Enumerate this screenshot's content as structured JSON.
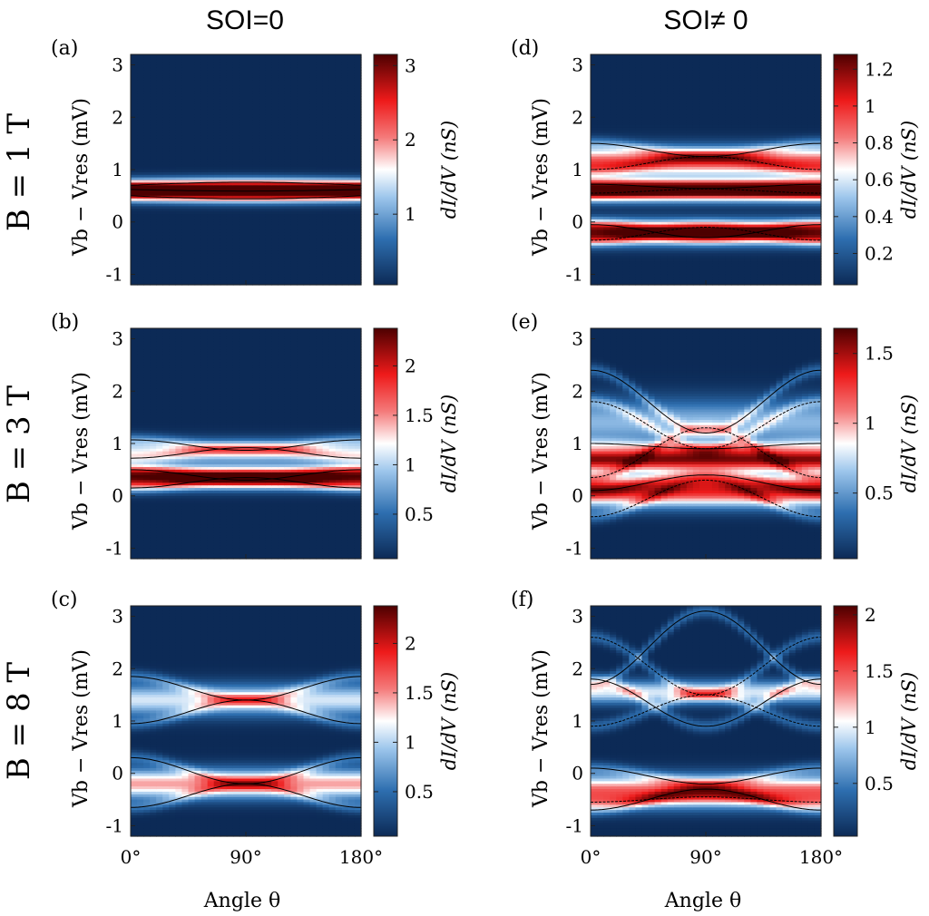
{
  "figure": {
    "col_titles": [
      "SOI=0",
      "SOI≠ 0"
    ],
    "row_labels": [
      "B = 1 T",
      "B = 3 T",
      "B = 8 T"
    ],
    "colorbar_label": "dI/dV (nS)",
    "y_axis_label": "Vb − Vres (mV)",
    "x_axis_label": "Angle θ"
  },
  "chart_data": [
    {
      "type": "heatmap",
      "panel": "(a)",
      "B_T": 1,
      "soi": false,
      "xlabel": "Angle θ",
      "ylabel": "Vb − Vres (mV)",
      "xlim": [
        0,
        180
      ],
      "ylim": [
        -1.2,
        3.2
      ],
      "x_ticks": [
        "0°",
        "90°",
        "180°"
      ],
      "y_ticks": [
        "-1",
        "0",
        "1",
        "2",
        "3"
      ],
      "colorbar": {
        "label": "dI/dV (nS)",
        "range": [
          0.05,
          3.15
        ],
        "ticks": [
          "1",
          "2",
          "3"
        ]
      },
      "bands": [
        {
          "center": 0.6,
          "width": 0.18,
          "amp": 1.0
        }
      ],
      "lines": [
        {
          "base": 0.7,
          "amp": 0.06,
          "shape": "up"
        },
        {
          "base": 0.5,
          "amp": 0.06,
          "shape": "down"
        },
        {
          "base": 0.62,
          "amp": 0.03,
          "shape": "down"
        }
      ]
    },
    {
      "type": "heatmap",
      "panel": "(b)",
      "B_T": 3,
      "soi": false,
      "xlabel": "Angle θ",
      "ylabel": "Vb − Vres (mV)",
      "xlim": [
        0,
        180
      ],
      "ylim": [
        -1.2,
        3.2
      ],
      "x_ticks": [
        "0°",
        "90°",
        "180°"
      ],
      "y_ticks": [
        "-1",
        "0",
        "1",
        "2",
        "3"
      ],
      "colorbar": {
        "label": "dI/dV (nS)",
        "range": [
          0.05,
          2.38
        ],
        "ticks": [
          "0.5",
          "1",
          "1.5",
          "2"
        ]
      },
      "bands": [
        {
          "center": 0.35,
          "width": 0.2,
          "amp": 0.95
        },
        {
          "center": 0.85,
          "width": 0.22,
          "amp": 0.42
        }
      ],
      "lines": [
        {
          "base": 1.07,
          "amp": -0.2,
          "shape": "cos"
        },
        {
          "base": 0.72,
          "amp": 0.2,
          "shape": "cos"
        },
        {
          "base": 0.5,
          "amp": -0.2,
          "shape": "cos"
        },
        {
          "base": 0.15,
          "amp": 0.2,
          "shape": "cos"
        }
      ]
    },
    {
      "type": "heatmap",
      "panel": "(c)",
      "B_T": 8,
      "soi": false,
      "xlabel": "Angle θ",
      "ylabel": "Vb − Vres (mV)",
      "xlim": [
        0,
        180
      ],
      "ylim": [
        -1.2,
        3.2
      ],
      "x_ticks": [
        "0°",
        "90°",
        "180°"
      ],
      "y_ticks": [
        "-1",
        "0",
        "1",
        "2",
        "3"
      ],
      "colorbar": {
        "label": "dI/dV (nS)",
        "range": [
          0.05,
          2.38
        ],
        "ticks": [
          "0.5",
          "1",
          "1.5",
          "2"
        ]
      },
      "bands": [
        {
          "center": 1.4,
          "width": 0.3,
          "amp": 0.45
        },
        {
          "center": -0.2,
          "width": 0.28,
          "amp": 0.6
        }
      ],
      "lines": [
        {
          "base": 1.85,
          "amp": -0.45,
          "shape": "cos"
        },
        {
          "base": 0.95,
          "amp": 0.45,
          "shape": "cos"
        },
        {
          "base": 0.3,
          "amp": -0.5,
          "shape": "cos"
        },
        {
          "base": -0.65,
          "amp": 0.45,
          "shape": "cos"
        }
      ]
    },
    {
      "type": "heatmap",
      "panel": "(d)",
      "B_T": 1,
      "soi": true,
      "xlabel": "Angle θ",
      "ylabel": "Vb − Vres (mV)",
      "xlim": [
        0,
        180
      ],
      "ylim": [
        -1.2,
        3.2
      ],
      "x_ticks": [
        "0°",
        "90°",
        "180°"
      ],
      "y_ticks": [
        "-1",
        "0",
        "1",
        "2",
        "3"
      ],
      "colorbar": {
        "label": "dI/dV (nS)",
        "range": [
          0.03,
          1.28
        ],
        "ticks": [
          "0.2",
          "0.4",
          "0.6",
          "0.8",
          "1",
          "1.2"
        ]
      },
      "bands": [
        {
          "center": 1.15,
          "width": 0.28,
          "amp": 0.7
        },
        {
          "center": 0.6,
          "width": 0.2,
          "amp": 0.95
        },
        {
          "center": -0.2,
          "width": 0.22,
          "amp": 0.9
        }
      ],
      "lines": [
        {
          "base": 1.5,
          "amp": -0.25,
          "shape": "cos"
        },
        {
          "base": 1.0,
          "amp": 0.25,
          "shape": "cos"
        },
        {
          "base": 0.72,
          "amp": -0.08,
          "shape": "cos"
        },
        {
          "base": 0.55,
          "amp": 0.08,
          "shape": "cos"
        },
        {
          "base": -0.05,
          "amp": -0.25,
          "shape": "cos"
        },
        {
          "base": -0.35,
          "amp": 0.25,
          "shape": "cos"
        }
      ]
    },
    {
      "type": "heatmap",
      "panel": "(e)",
      "B_T": 3,
      "soi": true,
      "xlabel": "Angle θ",
      "ylabel": "Vb − Vres (mV)",
      "xlim": [
        0,
        180
      ],
      "ylim": [
        -1.2,
        3.2
      ],
      "x_ticks": [
        "0°",
        "90°",
        "180°"
      ],
      "y_ticks": [
        "-1",
        "0",
        "1",
        "2",
        "3"
      ],
      "colorbar": {
        "label": "dI/dV (nS)",
        "range": [
          0.03,
          1.68
        ],
        "ticks": [
          "0.5",
          "1",
          "1.5"
        ]
      },
      "bands": [
        {
          "center": 0.7,
          "width": 0.22,
          "amp": 0.9
        },
        {
          "center": 0.1,
          "width": 0.3,
          "amp": 0.8
        },
        {
          "center": 1.4,
          "width": 0.45,
          "amp": 0.35
        }
      ],
      "lines": [
        {
          "base": 2.4,
          "amp": -1.2,
          "shape": "cos"
        },
        {
          "base": 1.8,
          "amp": -0.9,
          "shape": "cos"
        },
        {
          "base": 1.0,
          "amp": -0.1,
          "shape": "cos"
        },
        {
          "base": 0.35,
          "amp": 0.95,
          "shape": "cos"
        },
        {
          "base": 0.1,
          "amp": 0.3,
          "shape": "cos"
        },
        {
          "base": -0.4,
          "amp": 0.7,
          "shape": "cos"
        }
      ]
    },
    {
      "type": "heatmap",
      "panel": "(f)",
      "B_T": 8,
      "soi": true,
      "xlabel": "Angle θ",
      "ylabel": "Vb − Vres (mV)",
      "xlim": [
        0,
        180
      ],
      "ylim": [
        -1.2,
        3.2
      ],
      "x_ticks": [
        "0°",
        "90°",
        "180°"
      ],
      "y_ticks": [
        "-1",
        "0",
        "1",
        "2",
        "3"
      ],
      "colorbar": {
        "label": "dI/dV (nS)",
        "range": [
          0.03,
          2.08
        ],
        "ticks": [
          "0.5",
          "1",
          "1.5",
          "2"
        ]
      },
      "bands": [
        {
          "center": 1.55,
          "width": 0.22,
          "amp": 0.45
        },
        {
          "center": -0.35,
          "width": 0.3,
          "amp": 0.7
        }
      ],
      "lines": [
        {
          "base": 1.7,
          "amp": 1.4,
          "shape": "cos"
        },
        {
          "base": 2.6,
          "amp": -1.1,
          "shape": "cos"
        },
        {
          "base": 1.8,
          "amp": -0.9,
          "shape": "cos"
        },
        {
          "base": 0.9,
          "amp": 0.6,
          "shape": "cos"
        },
        {
          "base": 0.1,
          "amp": -0.3,
          "shape": "cos"
        },
        {
          "base": -0.55,
          "amp": 0.1,
          "shape": "cos"
        },
        {
          "base": -0.7,
          "amp": 0.4,
          "shape": "cos"
        }
      ]
    }
  ]
}
